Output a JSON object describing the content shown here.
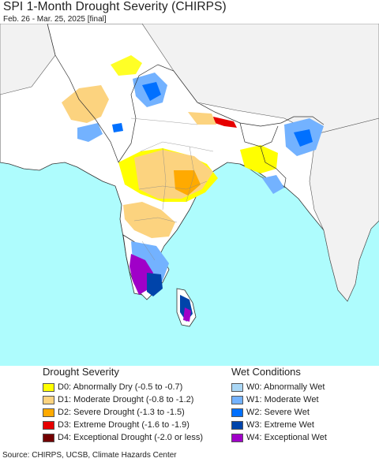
{
  "header": {
    "title": "SPI 1-Month Drought Severity (CHIRPS)",
    "subtitle": "Feb. 26 - Mar. 25, 2025 [final]"
  },
  "legend": {
    "drought_title": "Drought Severity",
    "wet_title": "Wet Conditions",
    "drought": [
      {
        "label": "D0: Abnormally Dry (-0.5 to -0.7)",
        "color": "#ffff00"
      },
      {
        "label": "D1: Moderate Drought (-0.8 to -1.2)",
        "color": "#fcd37f"
      },
      {
        "label": "D2: Severe Drought (-1.3 to -1.5)",
        "color": "#ffaa00"
      },
      {
        "label": "D3: Extreme Drought (-1.6 to -1.9)",
        "color": "#e60000"
      },
      {
        "label": "D4: Exceptional Drought (-2.0 or less)",
        "color": "#730000"
      }
    ],
    "wet": [
      {
        "label": "W0: Abnormally Wet",
        "color": "#aad7f5"
      },
      {
        "label": "W1: Moderate Wet",
        "color": "#73b2ff"
      },
      {
        "label": "W2: Severe Wet",
        "color": "#0070ff"
      },
      {
        "label": "W3: Extreme Wet",
        "color": "#0044aa"
      },
      {
        "label": "W4: Exceptional Wet",
        "color": "#a000c8"
      }
    ]
  },
  "footer": {
    "source": "Source: CHIRPS, UCSB, Climate Hazards Center"
  },
  "map_colors": {
    "ocean": "#aefcfd",
    "land": "#ffffff",
    "outside_region": "#f2f2f2",
    "borders": "#333333"
  }
}
